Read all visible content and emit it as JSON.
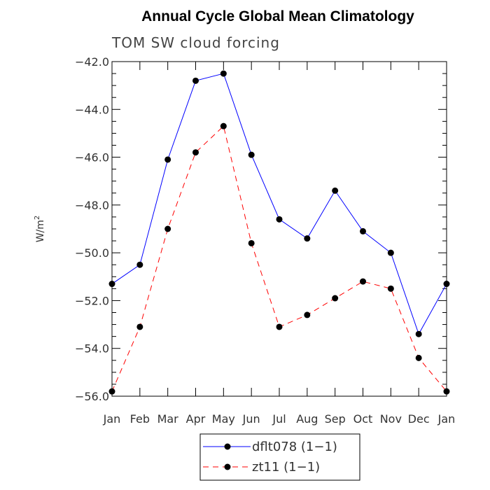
{
  "chart_data": {
    "type": "line",
    "title": "Annual Cycle Global Mean Climatology",
    "subtitle": "TOM SW cloud forcing",
    "ylabel_base": "W/m",
    "ylabel_sup": "2",
    "xlabel": "",
    "categories": [
      "Jan",
      "Feb",
      "Mar",
      "Apr",
      "May",
      "Jun",
      "Jul",
      "Aug",
      "Sep",
      "Oct",
      "Nov",
      "Dec",
      "Jan"
    ],
    "ylim": [
      -56.0,
      -42.0
    ],
    "yticks": [
      -42.0,
      -44.0,
      -46.0,
      -48.0,
      -50.0,
      -52.0,
      -54.0,
      -56.0
    ],
    "ytick_labels": [
      "−42.0",
      "−44.0",
      "−46.0",
      "−48.0",
      "−50.0",
      "−52.0",
      "−54.0",
      "−56.0"
    ],
    "series": [
      {
        "name": "dflt078 (1−1)",
        "color": "#0000ff",
        "dash": "solid",
        "values": [
          -51.3,
          -50.5,
          -46.1,
          -42.8,
          -42.5,
          -45.9,
          -48.6,
          -49.4,
          -47.4,
          -49.1,
          -50.0,
          -53.4,
          -51.3
        ]
      },
      {
        "name": "zt11 (1−1)",
        "color": "#ff0000",
        "dash": "dashed",
        "values": [
          -55.8,
          -53.1,
          -49.0,
          -45.8,
          -44.7,
          -49.6,
          -53.1,
          -52.6,
          -51.9,
          -51.2,
          -51.5,
          -54.4,
          -55.8
        ]
      }
    ],
    "legend_position": "bottom-center"
  }
}
